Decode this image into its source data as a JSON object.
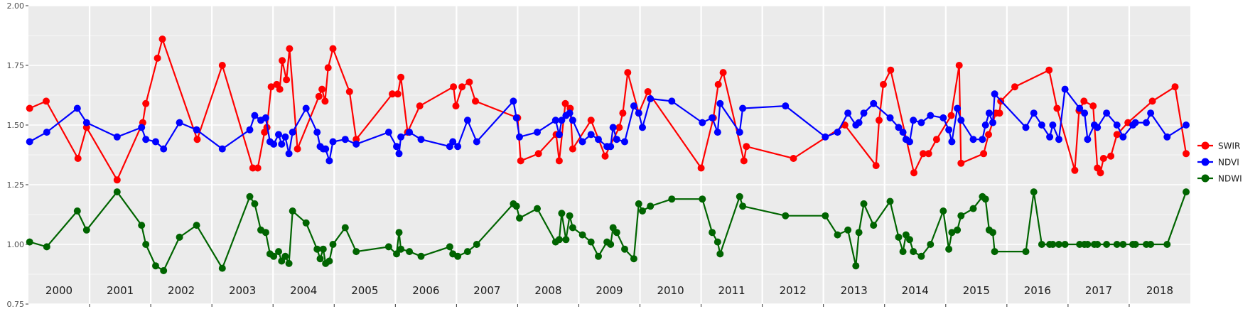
{
  "chart_data": {
    "type": "line",
    "ylim": [
      0.75,
      2.0
    ],
    "yticks": [
      "0.75",
      "1.00",
      "1.25",
      "1.50",
      "1.75",
      "2.00"
    ],
    "years": [
      "2000",
      "2001",
      "2002",
      "2003",
      "2004",
      "2005",
      "2006",
      "2007",
      "2008",
      "2009",
      "2010",
      "2011",
      "2012",
      "2013",
      "2014",
      "2015",
      "2016",
      "2017",
      "2018"
    ],
    "xlim": [
      2000.0,
      2019.0
    ],
    "grid": true,
    "legend_position": "right",
    "series": [
      {
        "name": "SWIR",
        "color": "#ff0000",
        "x": [
          2000.02,
          2000.29,
          2000.81,
          2000.95,
          2001.45,
          2001.87,
          2001.92,
          2002.11,
          2002.19,
          2002.76,
          2003.17,
          2003.67,
          2003.75,
          2003.86,
          2003.9,
          2003.97,
          2004.06,
          2004.11,
          2004.15,
          2004.22,
          2004.27,
          2004.4,
          2004.75,
          2004.8,
          2004.85,
          2004.9,
          2004.98,
          2005.25,
          2005.36,
          2005.95,
          2006.04,
          2006.09,
          2006.2,
          2006.4,
          2006.95,
          2006.99,
          2007.09,
          2007.21,
          2007.31,
          2008.0,
          2008.05,
          2008.34,
          2008.63,
          2008.68,
          2008.78,
          2008.86,
          2008.9,
          2009.2,
          2009.43,
          2009.66,
          2009.72,
          2009.8,
          2009.98,
          2010.13,
          2011.0,
          2011.2,
          2011.28,
          2011.36,
          2011.7,
          2011.74,
          2012.51,
          2013.35,
          2013.86,
          2013.91,
          2013.98,
          2014.1,
          2014.48,
          2014.63,
          2014.72,
          2014.85,
          2015.09,
          2015.22,
          2015.25,
          2015.62,
          2015.7,
          2015.82,
          2015.88,
          2015.9,
          2016.13,
          2016.69,
          2016.82,
          2017.11,
          2017.18,
          2017.26,
          2017.41,
          2017.48,
          2017.53,
          2017.58,
          2017.7,
          2017.8,
          2017.98,
          2018.38,
          2018.75,
          2018.93
        ],
        "values": [
          1.57,
          1.6,
          1.36,
          1.49,
          1.27,
          1.51,
          1.59,
          1.78,
          1.86,
          1.44,
          1.75,
          1.32,
          1.32,
          1.47,
          1.49,
          1.66,
          1.67,
          1.65,
          1.77,
          1.69,
          1.82,
          1.4,
          1.62,
          1.65,
          1.6,
          1.74,
          1.82,
          1.64,
          1.44,
          1.63,
          1.63,
          1.7,
          1.47,
          1.58,
          1.66,
          1.58,
          1.66,
          1.68,
          1.6,
          1.53,
          1.35,
          1.38,
          1.46,
          1.35,
          1.59,
          1.57,
          1.4,
          1.52,
          1.37,
          1.49,
          1.55,
          1.72,
          1.55,
          1.64,
          1.32,
          1.53,
          1.67,
          1.72,
          1.35,
          1.41,
          1.36,
          1.5,
          1.33,
          1.52,
          1.67,
          1.73,
          1.3,
          1.38,
          1.38,
          1.44,
          1.54,
          1.75,
          1.34,
          1.38,
          1.46,
          1.55,
          1.55,
          1.6,
          1.66,
          1.73,
          1.57,
          1.31,
          1.56,
          1.6,
          1.58,
          1.32,
          1.3,
          1.36,
          1.37,
          1.46,
          1.51,
          1.6,
          1.66,
          1.38
        ]
      },
      {
        "name": "NDVI",
        "color": "#0000ff",
        "x": [
          2000.02,
          2000.3,
          2000.8,
          2000.95,
          2001.45,
          2001.85,
          2001.92,
          2002.08,
          2002.21,
          2002.47,
          2002.75,
          2003.17,
          2003.62,
          2003.7,
          2003.8,
          2003.88,
          2003.95,
          2004.01,
          2004.09,
          2004.14,
          2004.2,
          2004.26,
          2004.32,
          2004.54,
          2004.72,
          2004.77,
          2004.82,
          2004.86,
          2004.92,
          2004.98,
          2005.18,
          2005.36,
          2005.89,
          2006.02,
          2006.06,
          2006.09,
          2006.23,
          2006.42,
          2006.89,
          2006.94,
          2007.02,
          2007.18,
          2007.33,
          2007.93,
          2007.98,
          2008.03,
          2008.32,
          2008.62,
          2008.68,
          2008.72,
          2008.79,
          2008.85,
          2008.9,
          2009.06,
          2009.2,
          2009.32,
          2009.46,
          2009.52,
          2009.56,
          2009.62,
          2009.75,
          2009.9,
          2009.98,
          2010.04,
          2010.17,
          2010.52,
          2011.02,
          2011.18,
          2011.27,
          2011.31,
          2011.63,
          2011.68,
          2012.38,
          2013.03,
          2013.23,
          2013.4,
          2013.53,
          2013.58,
          2013.66,
          2013.82,
          2014.09,
          2014.23,
          2014.3,
          2014.35,
          2014.41,
          2014.47,
          2014.6,
          2014.75,
          2014.96,
          2015.05,
          2015.1,
          2015.19,
          2015.25,
          2015.45,
          2015.6,
          2015.65,
          2015.71,
          2015.77,
          2015.8,
          2016.31,
          2016.44,
          2016.57,
          2016.7,
          2016.75,
          2016.85,
          2016.95,
          2017.19,
          2017.27,
          2017.32,
          2017.43,
          2017.48,
          2017.63,
          2017.8,
          2017.9,
          2018.06,
          2018.1,
          2018.28,
          2018.35,
          2018.62,
          2018.93
        ],
        "values": [
          1.43,
          1.47,
          1.57,
          1.51,
          1.45,
          1.49,
          1.44,
          1.43,
          1.4,
          1.51,
          1.48,
          1.4,
          1.48,
          1.54,
          1.52,
          1.53,
          1.43,
          1.42,
          1.46,
          1.42,
          1.45,
          1.38,
          1.47,
          1.57,
          1.47,
          1.41,
          1.4,
          1.4,
          1.35,
          1.43,
          1.44,
          1.42,
          1.47,
          1.41,
          1.38,
          1.45,
          1.47,
          1.44,
          1.41,
          1.43,
          1.41,
          1.52,
          1.43,
          1.6,
          1.53,
          1.45,
          1.47,
          1.52,
          1.46,
          1.52,
          1.54,
          1.55,
          1.52,
          1.43,
          1.46,
          1.44,
          1.41,
          1.41,
          1.49,
          1.44,
          1.43,
          1.58,
          1.55,
          1.49,
          1.61,
          1.6,
          1.51,
          1.53,
          1.47,
          1.59,
          1.47,
          1.57,
          1.58,
          1.45,
          1.47,
          1.55,
          1.5,
          1.51,
          1.55,
          1.59,
          1.53,
          1.49,
          1.47,
          1.44,
          1.43,
          1.52,
          1.51,
          1.54,
          1.53,
          1.48,
          1.43,
          1.57,
          1.52,
          1.44,
          1.44,
          1.5,
          1.55,
          1.51,
          1.63,
          1.49,
          1.55,
          1.5,
          1.45,
          1.5,
          1.44,
          1.65,
          1.57,
          1.55,
          1.44,
          1.5,
          1.49,
          1.55,
          1.5,
          1.45,
          1.5,
          1.51,
          1.51,
          1.55,
          1.45,
          1.5
        ],
        "_note": "x/values are paired per point"
      },
      {
        "name": "NDWI",
        "color": "#006400",
        "x": [
          2000.02,
          2000.3,
          2000.8,
          2000.95,
          2001.45,
          2001.85,
          2001.92,
          2002.08,
          2002.21,
          2002.47,
          2002.75,
          2003.17,
          2003.62,
          2003.7,
          2003.8,
          2003.88,
          2003.95,
          2004.01,
          2004.09,
          2004.14,
          2004.2,
          2004.26,
          2004.32,
          2004.54,
          2004.72,
          2004.77,
          2004.82,
          2004.86,
          2004.92,
          2004.98,
          2005.18,
          2005.36,
          2005.89,
          2006.02,
          2006.06,
          2006.09,
          2006.23,
          2006.42,
          2006.89,
          2006.94,
          2007.02,
          2007.18,
          2007.33,
          2007.93,
          2007.98,
          2008.03,
          2008.32,
          2008.62,
          2008.68,
          2008.72,
          2008.79,
          2008.85,
          2008.9,
          2009.06,
          2009.2,
          2009.32,
          2009.46,
          2009.52,
          2009.56,
          2009.62,
          2009.75,
          2009.9,
          2009.98,
          2010.04,
          2010.17,
          2010.52,
          2011.02,
          2011.18,
          2011.27,
          2011.31,
          2011.63,
          2011.68,
          2012.38,
          2013.03,
          2013.23,
          2013.4,
          2013.53,
          2013.58,
          2013.66,
          2013.82,
          2014.09,
          2014.23,
          2014.3,
          2014.35,
          2014.41,
          2014.47,
          2014.6,
          2014.75,
          2014.96,
          2015.05,
          2015.1,
          2015.19,
          2015.25,
          2015.45,
          2015.6,
          2015.65,
          2015.71,
          2015.77,
          2015.8,
          2016.31,
          2016.44,
          2016.57,
          2016.7,
          2016.75,
          2016.85,
          2016.95,
          2017.19,
          2017.27,
          2017.32,
          2017.43,
          2017.48,
          2017.63,
          2017.8,
          2017.9,
          2018.06,
          2018.1,
          2018.28,
          2018.35,
          2018.62,
          2018.93
        ],
        "values": [
          1.01,
          0.99,
          1.14,
          1.06,
          1.22,
          1.08,
          1.0,
          0.91,
          0.89,
          1.03,
          1.08,
          0.9,
          1.2,
          1.17,
          1.06,
          1.05,
          0.96,
          0.95,
          0.97,
          0.93,
          0.95,
          0.92,
          1.14,
          1.09,
          0.98,
          0.94,
          0.98,
          0.92,
          0.93,
          1.0,
          1.07,
          0.97,
          0.99,
          0.96,
          1.05,
          0.98,
          0.97,
          0.95,
          0.99,
          0.96,
          0.95,
          0.97,
          1.0,
          1.17,
          1.16,
          1.11,
          1.15,
          1.01,
          1.02,
          1.13,
          1.02,
          1.12,
          1.07,
          1.04,
          1.01,
          0.95,
          1.01,
          1.0,
          1.07,
          1.05,
          0.98,
          0.94,
          1.17,
          1.14,
          1.16,
          1.19,
          1.19,
          1.05,
          1.01,
          0.96,
          1.2,
          1.16,
          1.12,
          1.12,
          1.04,
          1.06,
          0.91,
          1.05,
          1.17,
          1.08,
          1.18,
          1.03,
          0.97,
          1.04,
          1.02,
          0.97,
          0.95,
          1.0,
          1.14,
          0.98,
          1.05,
          1.06,
          1.12,
          1.15,
          1.2,
          1.19,
          1.06,
          1.05,
          0.97,
          0.97,
          1.22,
          1.0,
          1.0,
          1.0,
          1.0,
          1.0,
          1.0,
          1.0,
          1.0,
          1.0,
          1.0,
          1.0,
          1.0,
          1.0,
          1.0,
          1.0,
          1.0,
          1.0,
          1.0,
          1.22
        ]
      }
    ]
  }
}
